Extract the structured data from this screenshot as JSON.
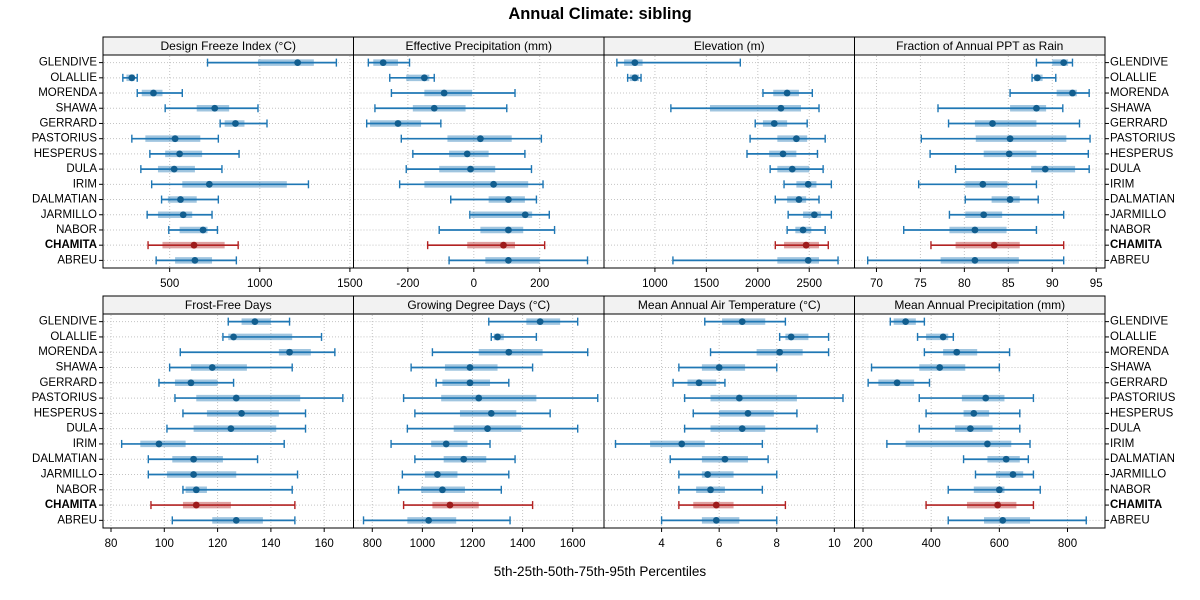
{
  "title": "Annual Climate: sibling",
  "caption": "5th-25th-50th-75th-95th Percentiles",
  "sites": [
    "GLENDIVE",
    "OLALLIE",
    "MORENDA",
    "SHAWA",
    "GERRARD",
    "PASTORIUS",
    "HESPERUS",
    "DULA",
    "IRIM",
    "DALMATIAN",
    "JARMILLO",
    "NABOR",
    "CHAMITA",
    "ABREU"
  ],
  "highlight_site": "CHAMITA",
  "percentile_labels": [
    "5th",
    "25th",
    "50th",
    "75th",
    "95th"
  ],
  "colors": {
    "series": "#1f77b4",
    "series_dot": "#125e8f",
    "highlight": "#b22222",
    "highlight_dot": "#9e1c1c",
    "strip_bg": "#f2f2f2",
    "grid": "#c4c4c4",
    "border": "#000000"
  },
  "chart_data": {
    "type": "dotplot-percentiles",
    "note": "Each row shows 5th-25th-50th-75th-95th percentiles per site; values aligned with sites array",
    "layout": {
      "rows": 2,
      "cols": 4,
      "grid": "dotted",
      "site_labels": "both-sides"
    },
    "panels": [
      {
        "row": 0,
        "col": 0,
        "title": "Design Freeze Index (°C)",
        "ticks": [
          500,
          1000,
          1500
        ],
        "xlim": [
          130,
          1520
        ],
        "values": [
          [
            710,
            990,
            1210,
            1300,
            1425
          ],
          [
            240,
            260,
            290,
            305,
            320
          ],
          [
            320,
            345,
            410,
            460,
            570
          ],
          [
            475,
            650,
            750,
            830,
            990
          ],
          [
            780,
            805,
            865,
            915,
            1040
          ],
          [
            290,
            365,
            530,
            670,
            770
          ],
          [
            390,
            475,
            555,
            680,
            885
          ],
          [
            340,
            435,
            525,
            640,
            790
          ],
          [
            400,
            570,
            720,
            1150,
            1270
          ],
          [
            455,
            490,
            560,
            650,
            770
          ],
          [
            375,
            435,
            575,
            625,
            735
          ],
          [
            495,
            555,
            685,
            710,
            765
          ],
          [
            380,
            460,
            635,
            805,
            880
          ],
          [
            425,
            530,
            640,
            735,
            870
          ]
        ]
      },
      {
        "row": 0,
        "col": 1,
        "title": "Effective Precipitation (mm)",
        "ticks": [
          -200,
          0,
          200
        ],
        "xlim": [
          -365,
          395
        ],
        "values": [
          [
            -320,
            -305,
            -275,
            -230,
            -195
          ],
          [
            -255,
            -205,
            -150,
            -135,
            -120
          ],
          [
            -250,
            -150,
            -90,
            -5,
            125
          ],
          [
            -300,
            -185,
            -120,
            -25,
            100
          ],
          [
            -325,
            -315,
            -230,
            -160,
            -100
          ],
          [
            -220,
            -80,
            20,
            115,
            205
          ],
          [
            -185,
            -75,
            -20,
            45,
            155
          ],
          [
            -205,
            -105,
            -10,
            65,
            175
          ],
          [
            -225,
            -150,
            60,
            165,
            210
          ],
          [
            -70,
            45,
            105,
            155,
            190
          ],
          [
            -12,
            -8,
            156,
            177,
            229
          ],
          [
            -105,
            20,
            105,
            150,
            245
          ],
          [
            -140,
            -20,
            90,
            125,
            215
          ],
          [
            -75,
            35,
            105,
            200,
            345
          ]
        ]
      },
      {
        "row": 0,
        "col": 2,
        "title": "Elevation (m)",
        "ticks": [
          1000,
          1500,
          2000,
          2500
        ],
        "xlim": [
          505,
          2940
        ],
        "values": [
          [
            630,
            700,
            805,
            880,
            1830
          ],
          [
            735,
            755,
            805,
            845,
            865
          ],
          [
            2050,
            2150,
            2285,
            2400,
            2530
          ],
          [
            1155,
            1535,
            2225,
            2420,
            2595
          ],
          [
            1975,
            2050,
            2160,
            2285,
            2480
          ],
          [
            1925,
            2190,
            2375,
            2480,
            2655
          ],
          [
            1895,
            2110,
            2245,
            2375,
            2580
          ],
          [
            2120,
            2190,
            2335,
            2500,
            2635
          ],
          [
            2255,
            2375,
            2490,
            2570,
            2715
          ],
          [
            2170,
            2285,
            2400,
            2470,
            2595
          ],
          [
            2295,
            2440,
            2550,
            2615,
            2715
          ],
          [
            2285,
            2365,
            2440,
            2520,
            2655
          ],
          [
            2170,
            2255,
            2470,
            2595,
            2685
          ],
          [
            1175,
            2190,
            2490,
            2595,
            2780
          ]
        ]
      },
      {
        "row": 0,
        "col": 3,
        "title": "Fraction of Annual PPT as Rain",
        "ticks": [
          70,
          75,
          80,
          85,
          90,
          95
        ],
        "xlim": [
          67.5,
          96
        ],
        "values": [
          [
            88.2,
            90.0,
            91.3,
            91.8,
            92.3
          ],
          [
            87.7,
            87.9,
            88.3,
            88.9,
            90.4
          ],
          [
            85.2,
            90.5,
            92.3,
            92.8,
            94.2
          ],
          [
            77.0,
            85.2,
            88.2,
            89.3,
            91.2
          ],
          [
            78.2,
            81.2,
            83.2,
            88.2,
            93.1
          ],
          [
            75.1,
            81.3,
            85.2,
            91.6,
            94.3
          ],
          [
            76.1,
            82.2,
            85.1,
            88.2,
            94.1
          ],
          [
            79.0,
            87.6,
            89.2,
            92.6,
            94.2
          ],
          [
            74.8,
            80.1,
            82.1,
            84.9,
            88.2
          ],
          [
            80.1,
            83.1,
            85.2,
            86.3,
            88.4
          ],
          [
            78.3,
            80.1,
            82.2,
            84.3,
            91.3
          ],
          [
            73.1,
            78.3,
            81.2,
            84.8,
            88.2
          ],
          [
            76.2,
            79.0,
            83.4,
            86.3,
            91.3
          ],
          [
            69.0,
            77.3,
            81.2,
            86.2,
            91.3
          ]
        ]
      },
      {
        "row": 1,
        "col": 0,
        "title": "Frost-Free Days",
        "ticks": [
          80,
          100,
          120,
          140,
          160
        ],
        "xlim": [
          77,
          171
        ],
        "values": [
          [
            124,
            129,
            134,
            140,
            147
          ],
          [
            122,
            124,
            126,
            148,
            159
          ],
          [
            106,
            143,
            147,
            155,
            164
          ],
          [
            102,
            110,
            118,
            131,
            148
          ],
          [
            98,
            104,
            110,
            120,
            126
          ],
          [
            104,
            112,
            127,
            151,
            167
          ],
          [
            107,
            116,
            129,
            143,
            153
          ],
          [
            101,
            111,
            125,
            142,
            153
          ],
          [
            84,
            91,
            98,
            108,
            145
          ],
          [
            94,
            103,
            111,
            122,
            135
          ],
          [
            94,
            101,
            111,
            127,
            150
          ],
          [
            107,
            108,
            112,
            116,
            148
          ],
          [
            95,
            107,
            112,
            125,
            149
          ],
          [
            103,
            118,
            127,
            137,
            149
          ]
        ]
      },
      {
        "row": 1,
        "col": 1,
        "title": "Growing Degree Days (°C)",
        "ticks": [
          800,
          1000,
          1200,
          1400,
          1600
        ],
        "xlim": [
          725,
          1725
        ],
        "values": [
          [
            1265,
            1415,
            1470,
            1550,
            1620
          ],
          [
            1275,
            1285,
            1300,
            1325,
            1455
          ],
          [
            1040,
            1225,
            1345,
            1480,
            1660
          ],
          [
            955,
            1090,
            1190,
            1300,
            1440
          ],
          [
            1055,
            1080,
            1190,
            1270,
            1345
          ],
          [
            925,
            1075,
            1225,
            1455,
            1700
          ],
          [
            970,
            1150,
            1275,
            1375,
            1510
          ],
          [
            940,
            1125,
            1260,
            1395,
            1620
          ],
          [
            875,
            1035,
            1095,
            1180,
            1270
          ],
          [
            970,
            1085,
            1165,
            1255,
            1370
          ],
          [
            920,
            1010,
            1060,
            1140,
            1345
          ],
          [
            905,
            995,
            1080,
            1170,
            1315
          ],
          [
            925,
            1040,
            1110,
            1225,
            1440
          ],
          [
            765,
            940,
            1025,
            1135,
            1350
          ]
        ]
      },
      {
        "row": 1,
        "col": 2,
        "title": "Mean Annual Air Temperature (°C)",
        "ticks": [
          4,
          6,
          8,
          10
        ],
        "xlim": [
          2.0,
          10.7
        ],
        "values": [
          [
            5.5,
            6.1,
            6.8,
            7.6,
            8.3
          ],
          [
            8.1,
            8.3,
            8.5,
            9.1,
            9.8
          ],
          [
            5.7,
            7.3,
            8.1,
            8.9,
            9.8
          ],
          [
            4.6,
            5.4,
            6.0,
            6.9,
            8.0
          ],
          [
            4.4,
            4.9,
            5.3,
            5.9,
            6.2
          ],
          [
            4.8,
            5.7,
            6.7,
            8.7,
            10.3
          ],
          [
            5.1,
            6.0,
            7.0,
            7.9,
            8.7
          ],
          [
            4.8,
            5.7,
            6.8,
            7.6,
            9.4
          ],
          [
            2.4,
            3.6,
            4.7,
            5.5,
            7.5
          ],
          [
            4.3,
            5.4,
            6.2,
            7.0,
            7.7
          ],
          [
            4.6,
            5.4,
            5.6,
            6.5,
            8.0
          ],
          [
            4.6,
            5.2,
            5.7,
            6.2,
            7.5
          ],
          [
            4.6,
            5.1,
            5.9,
            6.5,
            8.3
          ],
          [
            4.0,
            5.4,
            5.9,
            6.7,
            8.0
          ]
        ]
      },
      {
        "row": 1,
        "col": 3,
        "title": "Mean Annual Precipitation (mm)",
        "ticks": [
          200,
          400,
          600,
          800
        ],
        "xlim": [
          175,
          910
        ],
        "values": [
          [
            280,
            290,
            325,
            355,
            380
          ],
          [
            360,
            385,
            435,
            450,
            465
          ],
          [
            380,
            435,
            475,
            535,
            630
          ],
          [
            225,
            365,
            425,
            500,
            600
          ],
          [
            215,
            245,
            300,
            350,
            395
          ],
          [
            365,
            490,
            560,
            615,
            700
          ],
          [
            385,
            495,
            525,
            570,
            660
          ],
          [
            365,
            470,
            515,
            580,
            660
          ],
          [
            270,
            325,
            565,
            635,
            690
          ],
          [
            495,
            565,
            620,
            660,
            685
          ],
          [
            530,
            590,
            640,
            670,
            700
          ],
          [
            450,
            525,
            600,
            615,
            720
          ],
          [
            385,
            505,
            595,
            650,
            700
          ],
          [
            450,
            555,
            610,
            690,
            855
          ]
        ]
      }
    ]
  }
}
